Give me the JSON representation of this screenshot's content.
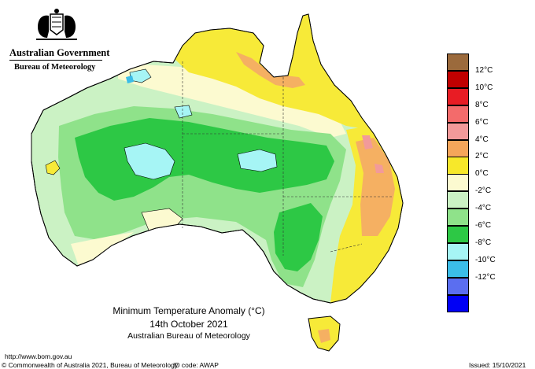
{
  "header": {
    "government": "Australian Government",
    "agency": "Bureau of Meteorology"
  },
  "caption": {
    "title": "Minimum Temperature Anomaly (°C)",
    "date": "14th October 2021",
    "agency": "Australian Bureau of Meteorology"
  },
  "footer": {
    "url": "http://www.bom.gov.au",
    "copyright": "© Commonwealth of Australia 2021, Bureau of Meteorology",
    "id_code": "ID code: AWAP",
    "issued": "Issued: 15/10/2021"
  },
  "legend": {
    "items": [
      {
        "label": "",
        "color": "#9b6a3c"
      },
      {
        "label": "12°C",
        "color": "#c00000"
      },
      {
        "label": "10°C",
        "color": "#e81c24"
      },
      {
        "label": "8°C",
        "color": "#f36b6b"
      },
      {
        "label": "6°C",
        "color": "#f29a9a"
      },
      {
        "label": "4°C",
        "color": "#f5a65a"
      },
      {
        "label": "2°C",
        "color": "#f7e82a"
      },
      {
        "label": "0°C",
        "color": "#fcfad0"
      },
      {
        "label": "-2°C",
        "color": "#cbf2c4"
      },
      {
        "label": "-4°C",
        "color": "#8fe28a"
      },
      {
        "label": "-6°C",
        "color": "#2dc845"
      },
      {
        "label": "-8°C",
        "color": "#a6f5f5"
      },
      {
        "label": "-10°C",
        "color": "#3bbde8"
      },
      {
        "label": "-12°C",
        "color": "#5b6ef0"
      },
      {
        "label": "",
        "color": "#0000f5"
      }
    ]
  },
  "map_regions": {
    "yellow_plus_2": "#f7ea38",
    "orange_plus_4": "#f5b062",
    "pink_plus_6": "#f29a9a",
    "cream_0": "#fcfad0",
    "pale_green_minus_2": "#cbf2c4",
    "mid_green_minus_4": "#8fe28a",
    "green_minus_6": "#2dc845",
    "cyan_minus_8": "#a6f5f5",
    "blue_minus_10": "#3bbde8"
  }
}
